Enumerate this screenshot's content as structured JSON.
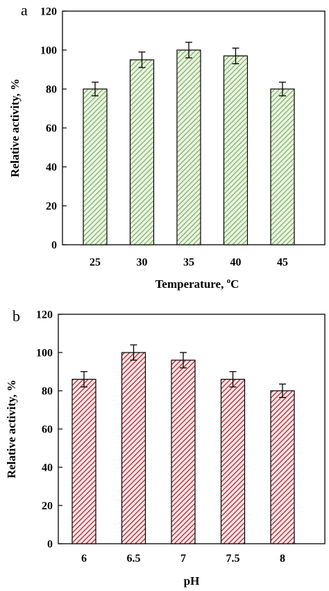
{
  "chart_data": [
    {
      "type": "bar",
      "panel_label": "a",
      "categories": [
        "25",
        "30",
        "35",
        "40",
        "45"
      ],
      "values": [
        80,
        95,
        100,
        97,
        80
      ],
      "errors": [
        3.5,
        4,
        4,
        4,
        3.5
      ],
      "xlabel": "Temperature, ",
      "xlabel_sup": "o",
      "xlabel_unit": "C",
      "ylabel": "Relative activity, %",
      "ylim": [
        0,
        120
      ],
      "yticks": [
        "0",
        "20",
        "40",
        "60",
        "80",
        "100",
        "120"
      ],
      "bar_color": "#6fa85a",
      "bar_fill": "#eaf4e0",
      "grid": false
    },
    {
      "type": "bar",
      "panel_label": "b",
      "categories": [
        "6",
        "6.5",
        "7",
        "7.5",
        "8"
      ],
      "values": [
        86,
        100,
        96,
        86,
        80
      ],
      "errors": [
        4,
        4,
        4,
        4,
        3.5
      ],
      "xlabel": "pH",
      "ylabel": "Relative activity, %",
      "ylim": [
        0,
        120
      ],
      "yticks": [
        "0",
        "20",
        "40",
        "60",
        "80",
        "100",
        "120"
      ],
      "bar_color": "#a81c2a",
      "bar_fill": "#f7e4e4",
      "grid": false
    }
  ]
}
